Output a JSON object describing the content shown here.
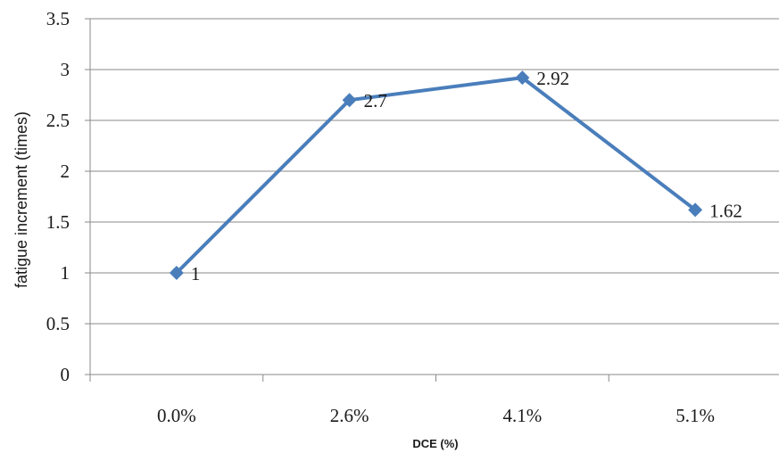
{
  "chart_data": {
    "type": "line",
    "title": "",
    "xlabel": "DCE (%)",
    "ylabel": "fatigue increment (times)",
    "categories": [
      "0.0%",
      "2.6%",
      "4.1%",
      "5.1%"
    ],
    "series": [
      {
        "values": [
          1,
          2.7,
          2.92,
          1.62
        ],
        "data_labels": [
          "1",
          "2.7",
          "2.92",
          "1.62"
        ],
        "color": "#4a7ebb",
        "marker": "diamond"
      }
    ],
    "ylim": [
      0,
      3.5
    ],
    "yticks": [
      0,
      0.5,
      1,
      1.5,
      2,
      2.5,
      3,
      3.5
    ],
    "ytick_labels": [
      "0",
      "0.5",
      "1",
      "1.5",
      "2",
      "2.5",
      "3",
      "3.5"
    ],
    "grid": "horizontal",
    "legend": "none"
  }
}
